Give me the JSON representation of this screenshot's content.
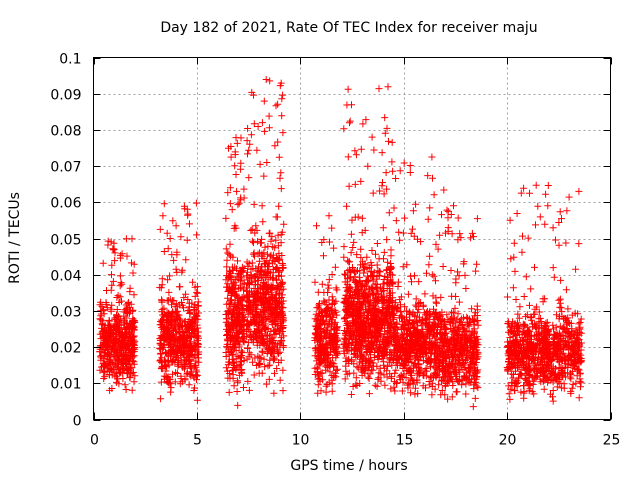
{
  "chart_data": {
    "type": "scatter",
    "title": "Day 182 of 2021, Rate Of TEC Index for receiver maju",
    "xlabel": "GPS time / hours",
    "ylabel": "ROTI / TECUs",
    "xlim": [
      0,
      25
    ],
    "ylim": [
      0,
      0.1
    ],
    "x_ticks": [
      "0",
      "5",
      "10",
      "15",
      "20",
      "25"
    ],
    "y_ticks": [
      "0",
      "0.01",
      "0.02",
      "0.03",
      "0.04",
      "0.05",
      "0.06",
      "0.07",
      "0.08",
      "0.09",
      "0.1"
    ],
    "grid": true,
    "marker": "+",
    "series_color": "#ff0000",
    "clusters": [
      {
        "x_range": [
          0.3,
          2.0
        ],
        "y_core": [
          0.005,
          0.032
        ],
        "y_peak": 0.05,
        "density": 500
      },
      {
        "x_range": [
          3.2,
          5.1
        ],
        "y_core": [
          0.004,
          0.035
        ],
        "y_peak": 0.06,
        "density": 520
      },
      {
        "x_range": [
          6.4,
          7.3
        ],
        "y_core": [
          0.003,
          0.045
        ],
        "y_peak": 0.078,
        "density": 330
      },
      {
        "x_range": [
          7.4,
          9.2
        ],
        "y_core": [
          0.004,
          0.05
        ],
        "y_peak": 0.094,
        "density": 620
      },
      {
        "x_range": [
          10.7,
          11.8
        ],
        "y_core": [
          0.004,
          0.035
        ],
        "y_peak": 0.057,
        "density": 300
      },
      {
        "x_range": [
          12.1,
          14.5
        ],
        "y_core": [
          0.004,
          0.045
        ],
        "y_peak": 0.093,
        "density": 900
      },
      {
        "x_range": [
          14.5,
          17.0
        ],
        "y_core": [
          0.004,
          0.033
        ],
        "y_peak": 0.073,
        "density": 700
      },
      {
        "x_range": [
          17.0,
          18.6
        ],
        "y_core": [
          0.003,
          0.03
        ],
        "y_peak": 0.06,
        "density": 420
      },
      {
        "x_range": [
          20.0,
          23.6
        ],
        "y_core": [
          0.003,
          0.03
        ],
        "y_peak": 0.065,
        "density": 850
      }
    ]
  }
}
